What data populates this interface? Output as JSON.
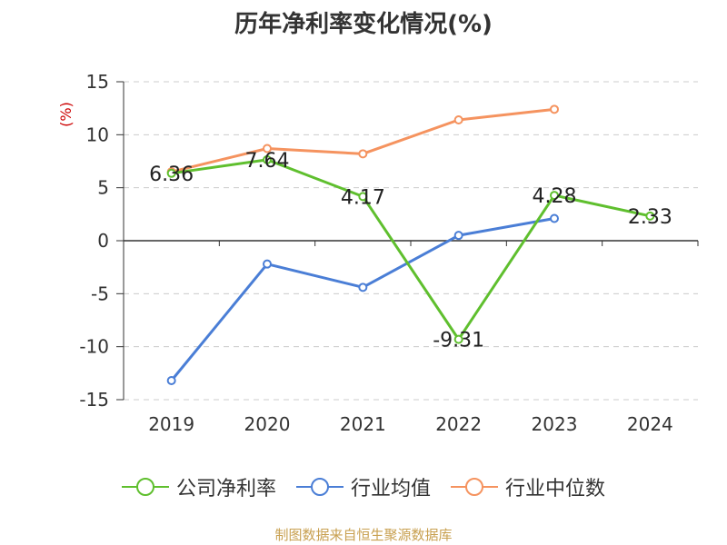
{
  "title": "历年净利率变化情况(%)",
  "source_note": "制图数据来自恒生聚源数据库",
  "colors": {
    "company": "#5fbf2e",
    "industry_avg": "#4a7ed6",
    "industry_median": "#f5935f",
    "ylabel": "#cc0000",
    "grid": "#cccccc",
    "axis": "#333333"
  },
  "chart_data": {
    "type": "line",
    "title": "历年净利率变化情况(%)",
    "xlabel": "",
    "ylabel": "(%)",
    "ylim": [
      -15,
      15
    ],
    "yticks": [
      15,
      10,
      5,
      0,
      -5,
      -10,
      -15
    ],
    "categories": [
      "2019",
      "2020",
      "2021",
      "2022",
      "2023",
      "2024"
    ],
    "grid": true,
    "legend_position": "bottom",
    "series": [
      {
        "name": "公司净利率",
        "color": "#5fbf2e",
        "values": [
          6.36,
          7.64,
          4.17,
          -9.31,
          4.28,
          2.33
        ],
        "data_labels": [
          "6.36",
          "7.64",
          "4.17",
          "-9.31",
          "4.28",
          "2.33"
        ]
      },
      {
        "name": "行业均值",
        "color": "#4a7ed6",
        "values": [
          -13.2,
          -2.2,
          -4.4,
          0.5,
          2.1,
          null
        ],
        "data_labels": []
      },
      {
        "name": "行业中位数",
        "color": "#f5935f",
        "values": [
          6.5,
          8.7,
          8.2,
          11.4,
          12.4,
          null
        ],
        "data_labels": []
      }
    ]
  }
}
